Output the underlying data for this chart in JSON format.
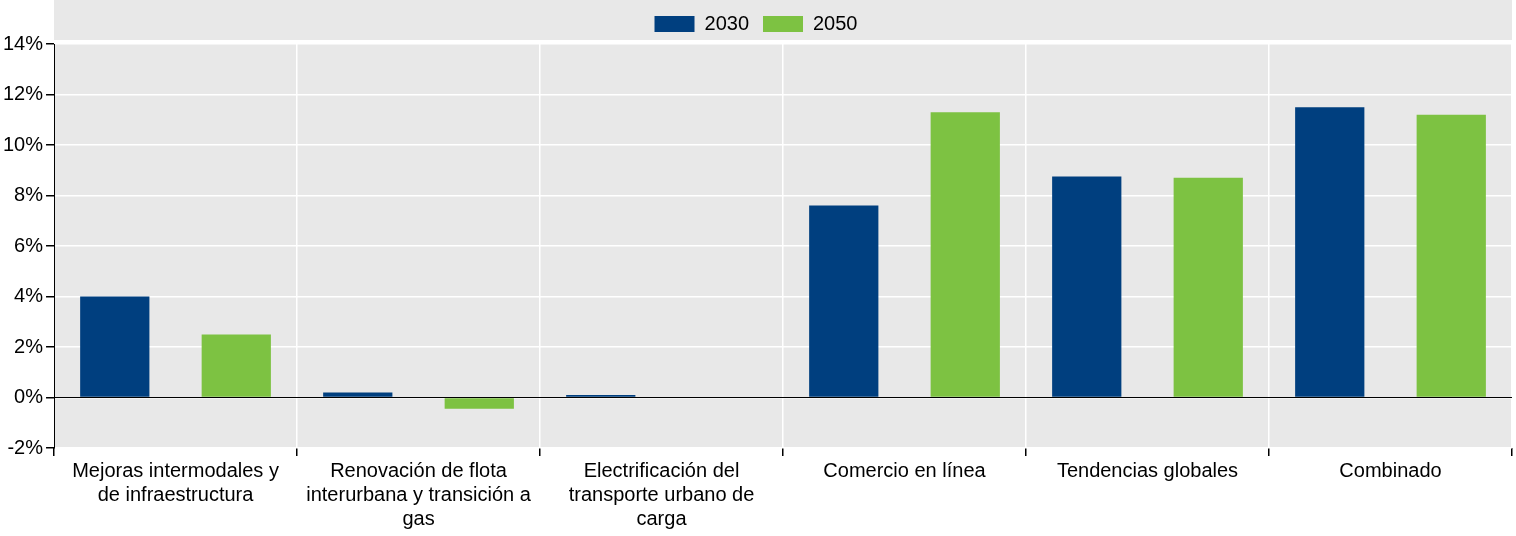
{
  "chart_data": {
    "type": "bar",
    "categories": [
      "Mejoras intermodales y de infraestructura",
      "Renovación de flota interurbana y transición a gas",
      "Electrificación del transporte urbano de carga",
      "Comercio en línea",
      "Tendencias globales",
      "Combinado"
    ],
    "series": [
      {
        "name": "2030",
        "color": "#003f7f",
        "values": [
          4.0,
          0.2,
          0.1,
          7.6,
          8.75,
          11.5
        ]
      },
      {
        "name": "2050",
        "color": "#7dc242",
        "values": [
          2.5,
          -0.45,
          0,
          11.3,
          8.7,
          11.2
        ]
      }
    ],
    "ylim": [
      -2,
      14
    ],
    "yticks": [
      {
        "value": -2,
        "label": "-2%"
      },
      {
        "value": 0,
        "label": "0%"
      },
      {
        "value": 2,
        "label": "2%"
      },
      {
        "value": 4,
        "label": "4%"
      },
      {
        "value": 6,
        "label": "6%"
      },
      {
        "value": 8,
        "label": "8%"
      },
      {
        "value": 10,
        "label": "10%"
      },
      {
        "value": 12,
        "label": "12%"
      },
      {
        "value": 14,
        "label": "14%"
      }
    ],
    "grid": true,
    "legend": "top"
  }
}
